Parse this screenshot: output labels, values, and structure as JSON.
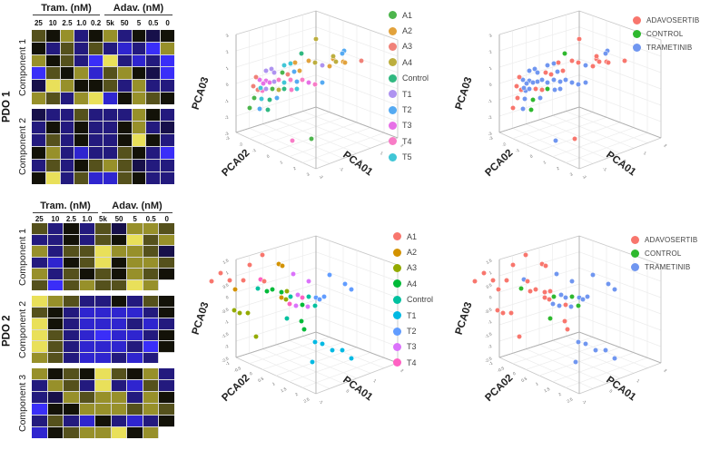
{
  "palette": {
    "heatmap": {
      "Y": "#e9e05a",
      "y": "#97902a",
      "d": "#55511c",
      "k": "#131208",
      "m": "#17104a",
      "n": "#231a7e",
      "b": "#2f25cf",
      "B": "#3a2ef8",
      "w": "#ffffff"
    },
    "grid_line": "#d8d8d8",
    "plot_grid": "#ececec",
    "plot_frame": "#c9c9c9",
    "plot_axis": "#b0b0b0"
  },
  "chart_data": [
    {
      "type": "heatmap",
      "title": "PDO 1",
      "drug_headers": [
        "Tram. (nM)",
        "Adav. (nM)"
      ],
      "col_labels": [
        "25",
        "10",
        "2.5",
        "1.0",
        "0.2",
        "5k",
        "50",
        "5",
        "0.5",
        "0"
      ],
      "colormap": "blue-black-yellow",
      "components": [
        {
          "label": "Component 1",
          "rows": [
            "dkynkynkmk",
            "kndndnbnBy",
            "ykdnBYnbnB",
            "BdkybdykmB",
            "mYykkdnynn",
            "ydnyYbkydk"
          ]
        },
        {
          "label": "Component 2",
          "rows": [
            "mnndnnnykn",
            "nknknnkynm",
            "ndnknnkYkn",
            "kynbnndknB",
            "ndnkdydmnn",
            "kYndbbdknn"
          ]
        }
      ]
    },
    {
      "type": "heatmap",
      "title": "PDO 2",
      "drug_headers": [
        "Tram. (nM)",
        "Adav. (nM)"
      ],
      "col_labels": [
        "25",
        "10",
        "2.5",
        "1.0",
        "5k",
        "50",
        "5",
        "0.5",
        "0"
      ],
      "colormap": "blue-black-yellow",
      "components": [
        {
          "label": "Component 1",
          "rows": [
            "dnkndmyyd",
            "nnkndkYdy",
            "ynddYyydm",
            "nbkdYkyyd",
            "yndkdkydk",
            "dBdyddYyw"
          ]
        },
        {
          "label": "Component 2",
          "rows": [
            "Yydnnkndk",
            "dknbbbbnk",
            "Yknbbbnbn",
            "YdnbBbbnk",
            "YdnbbbnBk",
            "ydnbbnbnw"
          ]
        },
        {
          "label": "Component 3",
          "rows": [
            "ykdkYdkyn",
            "nydnYnbdn",
            "nmydyynyk",
            "Bkkyyydyd",
            "ndnbknbnk",
            "bkdyyYkyw"
          ]
        }
      ]
    },
    {
      "type": "scatter3d",
      "id": "pdo1_by_sample",
      "axes": {
        "x": "PCA01",
        "y": "PCA02",
        "z": "PCA03"
      },
      "ticks": {
        "z": [
          "3",
          "2",
          "1",
          "0",
          "-1",
          "-2",
          "-3"
        ],
        "y": [
          "-3",
          "-2",
          "-1",
          "0",
          "1",
          "2",
          "3"
        ],
        "x": [
          "-2",
          "-1",
          "0",
          "1",
          "2"
        ]
      },
      "legend": [
        {
          "label": "A1",
          "color": "#4CB54C"
        },
        {
          "label": "A2",
          "color": "#E2A23C"
        },
        {
          "label": "A3",
          "color": "#F08178"
        },
        {
          "label": "A4",
          "color": "#BCAE3E"
        },
        {
          "label": "Control",
          "color": "#30B880"
        },
        {
          "label": "T1",
          "color": "#AE93F0"
        },
        {
          "label": "T2",
          "color": "#55AAF2"
        },
        {
          "label": "T3",
          "color": "#E670E6"
        },
        {
          "label": "T4",
          "color": "#F87CC6"
        },
        {
          "label": "T5",
          "color": "#40C6D6"
        }
      ],
      "points": [
        [
          148,
          43,
          "A4"
        ],
        [
          179,
          56,
          "T2"
        ],
        [
          177,
          59,
          "T2"
        ],
        [
          167,
          65,
          "A2"
        ],
        [
          178,
          68,
          "A2"
        ],
        [
          198,
          67,
          "A3"
        ],
        [
          132,
          59,
          "Control"
        ],
        [
          167,
          62,
          "A4"
        ],
        [
          99,
          76,
          "T1"
        ],
        [
          93,
          78,
          "T1"
        ],
        [
          102,
          80,
          "T1"
        ],
        [
          113,
          72,
          "T5"
        ],
        [
          120,
          70,
          "T5"
        ],
        [
          125,
          69,
          "A2"
        ],
        [
          140,
          67,
          "A2"
        ],
        [
          147,
          69,
          "A4"
        ],
        [
          155,
          72,
          "T1"
        ],
        [
          163,
          73,
          "A2"
        ],
        [
          170,
          68,
          "A4"
        ],
        [
          180,
          69,
          "A2"
        ],
        [
          111,
          80,
          "A1"
        ],
        [
          117,
          82,
          "A3"
        ],
        [
          124,
          79,
          "T2"
        ],
        [
          130,
          78,
          "A2"
        ],
        [
          86,
          88,
          "T3"
        ],
        [
          93,
          89,
          "T3"
        ],
        [
          97,
          91,
          "T3"
        ],
        [
          90,
          92,
          "T3"
        ],
        [
          102,
          90,
          "T1"
        ],
        [
          107,
          88,
          "T4"
        ],
        [
          113,
          91,
          "T5"
        ],
        [
          120,
          88,
          "T4"
        ],
        [
          127,
          90,
          "T2"
        ],
        [
          133,
          88,
          "T4"
        ],
        [
          140,
          91,
          "T3"
        ],
        [
          147,
          93,
          "T4"
        ],
        [
          155,
          91,
          "T2"
        ],
        [
          82,
          85,
          "A3"
        ],
        [
          79,
          95,
          "A3"
        ],
        [
          84,
          99,
          "A3"
        ],
        [
          89,
          100,
          "T4"
        ],
        [
          87,
          97,
          "T5"
        ],
        [
          93,
          98,
          "T1"
        ],
        [
          100,
          98,
          "A1"
        ],
        [
          107,
          99,
          "A4"
        ],
        [
          113,
          98,
          "Control"
        ],
        [
          121,
          99,
          "T4"
        ],
        [
          127,
          98,
          "T5"
        ],
        [
          80,
          108,
          "A1"
        ],
        [
          88,
          109,
          "T5"
        ],
        [
          97,
          110,
          "Control"
        ],
        [
          105,
          108,
          "T2"
        ],
        [
          75,
          119,
          "A1"
        ],
        [
          86,
          120,
          "T2"
        ],
        [
          95,
          121,
          "Control"
        ],
        [
          122,
          155,
          "T4"
        ],
        [
          143,
          153,
          "A1"
        ]
      ]
    },
    {
      "type": "scatter3d",
      "id": "pdo1_by_treatment",
      "axes": {
        "x": "PCA01",
        "y": "PCA02",
        "z": "PCA03"
      },
      "ticks": {
        "z": [
          "3",
          "2",
          "1",
          "0",
          "-1",
          "-2",
          "-3"
        ],
        "y": [
          "-3",
          "-2",
          "-1",
          "0",
          "1",
          "2",
          "3"
        ],
        "x": [
          "-2",
          "-1",
          "0",
          "1",
          "2"
        ]
      },
      "legend": [
        {
          "label": "ADAVOSERTIB",
          "color": "#F8766D"
        },
        {
          "label": "CONTROL",
          "color": "#2EB82E"
        },
        {
          "label": "TRAMETINIB",
          "color": "#7096F0"
        }
      ],
      "points_from": "pdo1_by_sample",
      "group_map": {
        "A1": "ADAVOSERTIB",
        "A2": "ADAVOSERTIB",
        "A3": "ADAVOSERTIB",
        "A4": "ADAVOSERTIB",
        "Control": "CONTROL",
        "T1": "TRAMETINIB",
        "T2": "TRAMETINIB",
        "T3": "TRAMETINIB",
        "T4": "TRAMETINIB",
        "T5": "TRAMETINIB"
      }
    },
    {
      "type": "scatter3d",
      "id": "pdo2_by_sample",
      "axes": {
        "x": "PCA01",
        "y": "PCA02",
        "z": "PCA03"
      },
      "ticks": {
        "z": [
          "1.5",
          "1",
          "0.5",
          "0",
          "-0.5",
          "-1",
          "-1.5",
          "-2",
          "-2.5"
        ],
        "y": [
          "-1",
          "-0.5",
          "0",
          "0.5",
          "1",
          "1.5",
          "2",
          "2.5"
        ],
        "x": [
          "-1",
          "0",
          "1",
          "2"
        ]
      },
      "legend": [
        {
          "label": "A1",
          "color": "#F8766D"
        },
        {
          "label": "A2",
          "color": "#D39200"
        },
        {
          "label": "A3",
          "color": "#93AA00"
        },
        {
          "label": "A4",
          "color": "#00BA38"
        },
        {
          "label": "Control",
          "color": "#00C19F"
        },
        {
          "label": "T1",
          "color": "#00B9E3"
        },
        {
          "label": "T2",
          "color": "#619CFF"
        },
        {
          "label": "T3",
          "color": "#DB72FB"
        },
        {
          "label": "T4",
          "color": "#FF61C3"
        }
      ],
      "points": [
        [
          89,
          33,
          "A1"
        ],
        [
          107,
          43,
          "A2"
        ],
        [
          111,
          45,
          "A2"
        ],
        [
          43,
          53,
          "A1"
        ],
        [
          75,
          44,
          "A1"
        ],
        [
          33,
          62,
          "A1"
        ],
        [
          53,
          61,
          "A1"
        ],
        [
          68,
          61,
          "A1"
        ],
        [
          59,
          71,
          "A2"
        ],
        [
          87,
          60,
          "T4"
        ],
        [
          91,
          62,
          "A1"
        ],
        [
          123,
          54,
          "T3"
        ],
        [
          140,
          62,
          "T3"
        ],
        [
          163,
          55,
          "T2"
        ],
        [
          180,
          65,
          "T2"
        ],
        [
          187,
          71,
          "T2"
        ],
        [
          84,
          70,
          "Control"
        ],
        [
          94,
          73,
          "A4"
        ],
        [
          100,
          71,
          "A4"
        ],
        [
          110,
          74,
          "A4"
        ],
        [
          116,
          73,
          "A3"
        ],
        [
          110,
          80,
          "A2"
        ],
        [
          115,
          82,
          "A3"
        ],
        [
          120,
          79,
          "Control"
        ],
        [
          128,
          77,
          "T3"
        ],
        [
          133,
          80,
          "T4"
        ],
        [
          140,
          79,
          "Control"
        ],
        [
          148,
          80,
          "T2"
        ],
        [
          152,
          82,
          "T2"
        ],
        [
          157,
          79,
          "T2"
        ],
        [
          119,
          87,
          "T4"
        ],
        [
          126,
          89,
          "T3"
        ],
        [
          133,
          88,
          "A4"
        ],
        [
          139,
          90,
          "T3"
        ],
        [
          147,
          89,
          "Control"
        ],
        [
          58,
          94,
          "A3"
        ],
        [
          64,
          97,
          "A3"
        ],
        [
          73,
          97,
          "A3"
        ],
        [
          82,
          123,
          "A3"
        ],
        [
          116,
          103,
          "Control"
        ],
        [
          132,
          106,
          "A4"
        ],
        [
          135,
          115,
          "A4"
        ],
        [
          147,
          129,
          "T1"
        ],
        [
          155,
          131,
          "T1"
        ],
        [
          144,
          151,
          "T1"
        ],
        [
          177,
          138,
          "T1"
        ],
        [
          166,
          138,
          "T1"
        ],
        [
          187,
          147,
          "T1"
        ]
      ]
    },
    {
      "type": "scatter3d",
      "id": "pdo2_by_treatment",
      "axes": {
        "x": "PCA01",
        "y": "PCA02",
        "z": "PCA03"
      },
      "ticks": {
        "z": [
          "1.5",
          "1",
          "0.5",
          "0",
          "-0.5",
          "-1",
          "-1.5",
          "-2",
          "-2.5"
        ],
        "y": [
          "-1",
          "-0.5",
          "0",
          "0.5",
          "1",
          "1.5",
          "2",
          "2.5"
        ],
        "x": [
          "-1",
          "0",
          "1",
          "2"
        ]
      },
      "legend": [
        {
          "label": "ADAVOSERTIB",
          "color": "#F8766D"
        },
        {
          "label": "CONTROL",
          "color": "#2EB82E"
        },
        {
          "label": "TRAMETINIB",
          "color": "#7096F0"
        }
      ],
      "points_from": "pdo2_by_sample",
      "group_map": {
        "A1": "ADAVOSERTIB",
        "A2": "ADAVOSERTIB",
        "A3": "ADAVOSERTIB",
        "A4": "ADAVOSERTIB",
        "Control": "CONTROL",
        "T1": "TRAMETINIB",
        "T2": "TRAMETINIB",
        "T3": "TRAMETINIB",
        "T4": "TRAMETINIB"
      }
    }
  ]
}
